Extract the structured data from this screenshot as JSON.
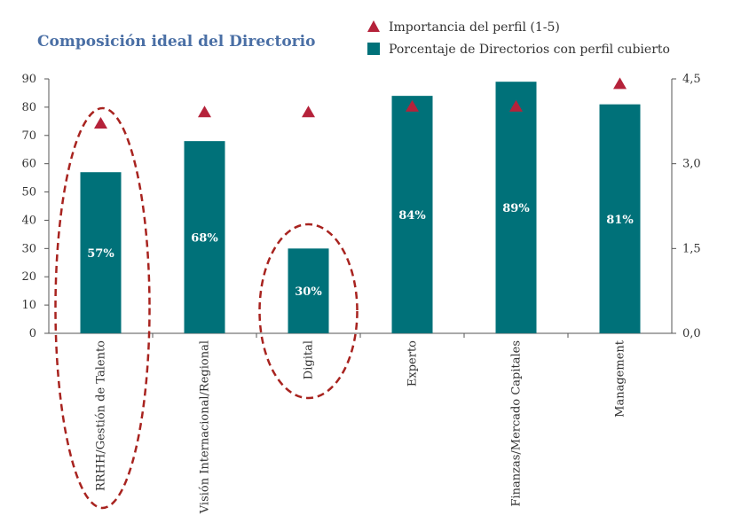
{
  "chart_data": {
    "type": "bar",
    "title": "Composición ideal del Directorio",
    "categories": [
      "RRHH/Gestión de Talento",
      "Visión Internacional/Regional",
      "Digital",
      "Experto",
      "Finanzas/Mercado Capitales",
      "Management"
    ],
    "series": [
      {
        "name": "Porcentaje de Directorios con perfil cubierto",
        "type": "bar",
        "axis": "left",
        "values": [
          57,
          68,
          30,
          84,
          89,
          81
        ],
        "labels": [
          "57%",
          "68%",
          "30%",
          "84%",
          "89%",
          "81%"
        ],
        "color": "#007179"
      },
      {
        "name": "Importancia del perfil (1-5)",
        "type": "scatter",
        "marker": "triangle",
        "axis": "right",
        "values": [
          3.7,
          3.9,
          3.9,
          4.0,
          4.0,
          4.4
        ],
        "color": "#b5223a"
      }
    ],
    "y_left": {
      "ylim": [
        0,
        90
      ],
      "ticks": [
        "0",
        "10",
        "20",
        "30",
        "40",
        "50",
        "60",
        "70",
        "80",
        "90"
      ]
    },
    "y_right": {
      "ylim": [
        0,
        4.5
      ],
      "ticks": [
        "0,0",
        "1,5",
        "3,0",
        "4,5"
      ],
      "values": [
        0,
        1.5,
        3,
        4.5
      ]
    },
    "highlighted_categories": [
      "RRHH/Gestión de Talento",
      "Digital"
    ],
    "highlight_color": "#a8231f",
    "title_color": "#4a6fa5",
    "grid": false,
    "legend_position": "top-right"
  }
}
